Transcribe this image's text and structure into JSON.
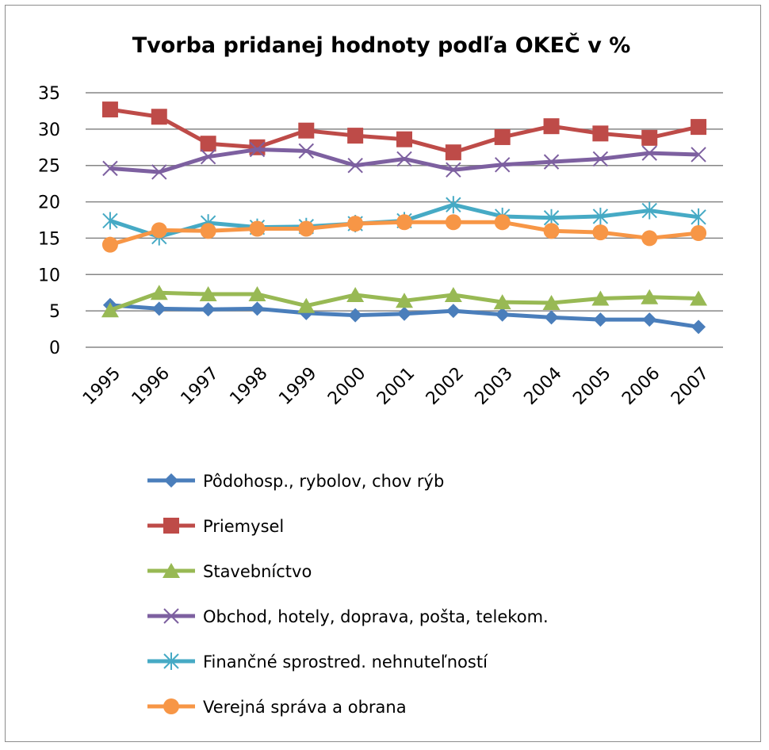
{
  "chart_data": {
    "type": "line",
    "title": "Tvorba pridanej hodnoty podľa OKEČ v %",
    "xlabel": "",
    "ylabel": "",
    "x": [
      "1995",
      "1996",
      "1997",
      "1998",
      "1999",
      "2000",
      "2001",
      "2002",
      "2003",
      "2004",
      "2005",
      "2006",
      "2007"
    ],
    "ylim": [
      0,
      35
    ],
    "yticks": [
      0,
      5,
      10,
      15,
      20,
      25,
      30,
      35
    ],
    "grid": true,
    "legend_position": "bottom",
    "series": [
      {
        "name": "Pôdohosp., rybolov, chov rýb",
        "color": "#4a7ebb",
        "marker": "diamond",
        "values": [
          5.8,
          5.3,
          5.2,
          5.3,
          4.7,
          4.4,
          4.6,
          5.0,
          4.5,
          4.1,
          3.8,
          3.8,
          2.8
        ]
      },
      {
        "name": "Priemysel",
        "color": "#be4b48",
        "marker": "square",
        "values": [
          32.7,
          31.7,
          28.0,
          27.5,
          29.8,
          29.1,
          28.6,
          26.8,
          28.9,
          30.4,
          29.4,
          28.8,
          30.3
        ]
      },
      {
        "name": "Stavebníctvo",
        "color": "#98b954",
        "marker": "triangle",
        "values": [
          5.1,
          7.5,
          7.3,
          7.3,
          5.7,
          7.2,
          6.4,
          7.2,
          6.2,
          6.1,
          6.7,
          6.9,
          6.7
        ]
      },
      {
        "name": "Obchod, hotely, doprava, pošta,  telekom.",
        "color": "#7d60a0",
        "marker": "x",
        "values": [
          24.6,
          24.1,
          26.2,
          27.2,
          27.0,
          25.0,
          25.9,
          24.4,
          25.1,
          25.5,
          25.9,
          26.7,
          26.5
        ]
      },
      {
        "name": "Finančné sprostred. nehnuteľností",
        "color": "#46aac5",
        "marker": "star",
        "values": [
          17.4,
          15.2,
          17.1,
          16.5,
          16.6,
          17.0,
          17.4,
          19.6,
          18.0,
          17.8,
          18.0,
          18.8,
          17.9
        ]
      },
      {
        "name": "Verejná správa a obrana",
        "color": "#f79646",
        "marker": "circle",
        "values": [
          14.1,
          16.1,
          16.0,
          16.3,
          16.3,
          17.0,
          17.2,
          17.2,
          17.2,
          16.0,
          15.8,
          15.0,
          15.7
        ]
      }
    ]
  }
}
